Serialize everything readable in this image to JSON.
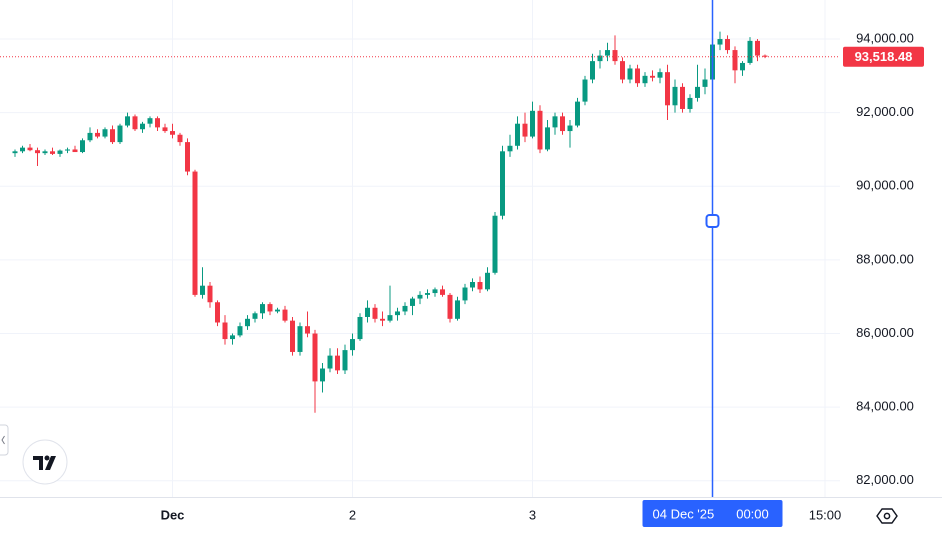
{
  "chart_data": {
    "type": "candlestick",
    "x": [
      -21,
      -20,
      -19,
      -18,
      -17,
      -16,
      -15,
      -14,
      -13,
      -12,
      -11,
      -10,
      -9,
      -8,
      -7,
      -6,
      -5,
      -4,
      -3,
      -2,
      -1,
      0,
      1,
      2,
      3,
      4,
      5,
      6,
      7,
      8,
      9,
      10,
      11,
      12,
      13,
      14,
      15,
      16,
      17,
      18,
      19,
      20,
      21,
      22,
      23,
      24,
      25,
      26,
      27,
      28,
      29,
      30,
      31,
      32,
      33,
      34,
      35,
      36,
      37,
      38,
      39,
      40,
      41,
      42,
      43,
      44,
      45,
      46,
      47,
      48,
      49,
      50,
      51,
      52,
      53,
      54,
      55,
      56,
      57,
      58,
      59,
      60,
      61,
      62,
      63,
      64,
      65,
      66,
      67,
      68,
      69,
      70,
      71,
      72,
      73,
      74,
      75,
      76,
      77,
      78,
      79
    ],
    "open": [
      90900,
      90950,
      91050,
      90980,
      90900,
      90950,
      90880,
      90970,
      91000,
      90930,
      91250,
      91450,
      91350,
      91550,
      91200,
      91650,
      91900,
      91550,
      91700,
      91850,
      91600,
      91500,
      91400,
      91200,
      90400,
      87050,
      87300,
      86850,
      86300,
      85850,
      85950,
      86200,
      86400,
      86550,
      86800,
      86600,
      86650,
      86350,
      85500,
      86200,
      86000,
      84700,
      85050,
      85400,
      85000,
      85550,
      85850,
      86450,
      86700,
      86400,
      86350,
      86500,
      86600,
      86750,
      86950,
      87050,
      87100,
      87200,
      87050,
      86400,
      86900,
      87250,
      87400,
      87200,
      87650,
      89200,
      90950,
      91100,
      91700,
      91350,
      92050,
      91000,
      91600,
      91900,
      91500,
      91650,
      92300,
      92900,
      93400,
      93550,
      93700,
      93400,
      92900,
      93200,
      92800,
      93000,
      92950,
      93100,
      92200,
      92700,
      92100,
      92400,
      92700,
      92900,
      93850,
      94000,
      93700,
      93150,
      93350,
      93950,
      93550
    ],
    "high": [
      91000,
      91100,
      91150,
      91050,
      91000,
      91050,
      91000,
      91050,
      91100,
      91300,
      91600,
      91550,
      91600,
      91650,
      91700,
      92000,
      91950,
      91750,
      91900,
      91900,
      91700,
      91700,
      91450,
      91300,
      90450,
      87800,
      87400,
      86900,
      86500,
      86000,
      86300,
      86500,
      86600,
      86850,
      86850,
      86700,
      86750,
      86450,
      86300,
      86600,
      86100,
      85200,
      85600,
      85600,
      85700,
      86000,
      86550,
      86900,
      86800,
      86600,
      87300,
      86700,
      86850,
      87000,
      87150,
      87200,
      87250,
      87300,
      87100,
      87000,
      87350,
      87500,
      87550,
      87800,
      89300,
      91100,
      91400,
      91900,
      92000,
      92300,
      92200,
      91800,
      92000,
      92000,
      91800,
      92400,
      93000,
      93600,
      93700,
      93900,
      94100,
      93500,
      93300,
      93300,
      93100,
      93150,
      93200,
      93300,
      92900,
      92800,
      92500,
      93300,
      93200,
      94100,
      94200,
      94100,
      93800,
      93400,
      94050,
      94000,
      93580
    ],
    "low": [
      90800,
      90900,
      90950,
      90550,
      90850,
      90850,
      90800,
      90900,
      90950,
      90900,
      91200,
      91300,
      91300,
      91150,
      91150,
      91600,
      91500,
      91450,
      91600,
      91500,
      91450,
      91300,
      91100,
      90300,
      87000,
      86950,
      86700,
      86200,
      85700,
      85700,
      85900,
      86100,
      86300,
      86400,
      86500,
      86550,
      86300,
      85400,
      85400,
      85900,
      83850,
      84400,
      84950,
      84900,
      84900,
      85400,
      85800,
      86300,
      86300,
      86200,
      86300,
      86350,
      86500,
      86500,
      86800,
      86950,
      87000,
      87000,
      86300,
      86350,
      86800,
      87150,
      87100,
      87150,
      87600,
      89100,
      90800,
      91000,
      91200,
      91300,
      90900,
      90950,
      91400,
      91400,
      91050,
      91600,
      92200,
      92800,
      93200,
      93400,
      93300,
      92800,
      92800,
      92700,
      92700,
      92850,
      92800,
      91800,
      92000,
      92000,
      92000,
      92300,
      92500,
      92800,
      93700,
      93600,
      92800,
      93000,
      93300,
      93400,
      93480
    ],
    "close": [
      90950,
      91050,
      90980,
      90900,
      90950,
      90880,
      90970,
      91000,
      90930,
      91250,
      91450,
      91350,
      91550,
      91200,
      91650,
      91900,
      91550,
      91700,
      91850,
      91600,
      91500,
      91400,
      91200,
      90400,
      87050,
      87300,
      86850,
      86300,
      85850,
      85950,
      86200,
      86400,
      86550,
      86800,
      86600,
      86650,
      86350,
      85500,
      86200,
      86000,
      84700,
      85050,
      85400,
      85000,
      85550,
      85850,
      86450,
      86700,
      86400,
      86350,
      86500,
      86600,
      86750,
      86950,
      87050,
      87100,
      87200,
      87050,
      86400,
      86900,
      87250,
      87400,
      87200,
      87650,
      89200,
      90950,
      91100,
      91700,
      91350,
      92050,
      91000,
      91600,
      91900,
      91500,
      91650,
      92300,
      92900,
      93400,
      93550,
      93700,
      93400,
      92900,
      93200,
      92800,
      93000,
      92950,
      93100,
      92200,
      92700,
      92100,
      92400,
      92700,
      92900,
      93850,
      94000,
      93700,
      93150,
      93350,
      93950,
      93550,
      93518.48
    ],
    "up_color": "#089981",
    "down_color": "#f23645",
    "xlim": [
      -23,
      89
    ],
    "xticks": [
      {
        "value": 0,
        "label": "Dec"
      },
      {
        "value": 24,
        "label": "2"
      },
      {
        "value": 48,
        "label": "3"
      },
      {
        "value": 87,
        "label": "15:00"
      }
    ],
    "ylim": [
      81560,
      95060
    ],
    "yticks": [
      {
        "value": 82000,
        "label": "82,000.00"
      },
      {
        "value": 84000,
        "label": "84,000.00"
      },
      {
        "value": 86000,
        "label": "86,000.00"
      },
      {
        "value": 88000,
        "label": "88,000.00"
      },
      {
        "value": 90000,
        "label": "90,000.00"
      },
      {
        "value": 92000,
        "label": "92,000.00"
      },
      {
        "value": 94000,
        "label": "94,000.00"
      }
    ],
    "grid": true,
    "last_price": {
      "value": 93518.48,
      "label": "93,518.48"
    },
    "crosshair": {
      "x": 72,
      "date_label": "04 Dec '25",
      "time_label": "00:00",
      "color": "#2962ff"
    }
  }
}
